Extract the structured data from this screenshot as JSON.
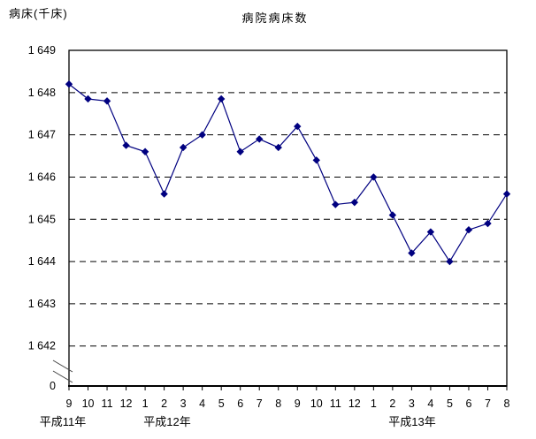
{
  "chart_data": {
    "type": "line",
    "title": "病院病床数",
    "ylabel": "病床(千床)",
    "xlabel": "",
    "x_tick_labels": [
      "9",
      "10",
      "11",
      "12",
      "1",
      "2",
      "3",
      "4",
      "5",
      "6",
      "7",
      "8",
      "9",
      "10",
      "11",
      "12",
      "1",
      "2",
      "3",
      "4",
      "5",
      "6",
      "7",
      "8"
    ],
    "eras": [
      {
        "label": "平成11年",
        "start_month_index": 0
      },
      {
        "label": "平成12年",
        "start_month_index": 4
      },
      {
        "label": "平成13年",
        "start_month_index": 16
      }
    ],
    "series": [
      {
        "name": "病院病床数",
        "values": [
          1648.2,
          1647.85,
          1647.8,
          1646.75,
          1646.6,
          1645.6,
          1646.7,
          1647.0,
          1647.85,
          1646.6,
          1646.9,
          1646.7,
          1647.2,
          1646.4,
          1645.35,
          1645.4,
          1646.0,
          1645.1,
          1644.2,
          1644.7,
          1644.0,
          1644.75,
          1644.9,
          1645.6
        ]
      }
    ],
    "yticks": [
      1649,
      1648,
      1647,
      1646,
      1645,
      1644,
      1643,
      1642
    ],
    "y_origin_label": "0",
    "ylim": [
      1642,
      1649
    ],
    "axis_break": true,
    "grid": "horizontal-dashed",
    "legend": "none",
    "line_color": "#000080",
    "marker": "diamond",
    "marker_color": "#000080",
    "frame_color": "#000000"
  }
}
